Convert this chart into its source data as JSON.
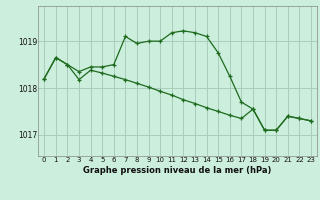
{
  "title": "Graphe pression niveau de la mer (hPa)",
  "background_color": "#cceedd",
  "grid_color": "#aaccbb",
  "line_color": "#1e6b1e",
  "xlim": [
    -0.5,
    23.5
  ],
  "ylim": [
    1016.55,
    1019.75
  ],
  "yticks": [
    1017,
    1018,
    1019
  ],
  "xticks": [
    0,
    1,
    2,
    3,
    4,
    5,
    6,
    7,
    8,
    9,
    10,
    11,
    12,
    13,
    14,
    15,
    16,
    17,
    18,
    19,
    20,
    21,
    22,
    23
  ],
  "series1": [
    [
      0,
      1018.2
    ],
    [
      1,
      1018.65
    ],
    [
      2,
      1018.5
    ],
    [
      3,
      1018.35
    ],
    [
      4,
      1018.45
    ],
    [
      5,
      1018.45
    ],
    [
      6,
      1018.5
    ],
    [
      7,
      1019.1
    ],
    [
      8,
      1018.95
    ],
    [
      9,
      1019.0
    ],
    [
      10,
      1019.0
    ],
    [
      11,
      1019.18
    ],
    [
      12,
      1019.22
    ],
    [
      13,
      1019.18
    ],
    [
      14,
      1019.1
    ],
    [
      15,
      1018.75
    ],
    [
      16,
      1018.25
    ],
    [
      17,
      1017.7
    ],
    [
      18,
      1017.55
    ],
    [
      19,
      1017.1
    ],
    [
      20,
      1017.1
    ],
    [
      21,
      1017.4
    ],
    [
      22,
      1017.35
    ],
    [
      23,
      1017.3
    ]
  ],
  "series2": [
    [
      0,
      1018.2
    ],
    [
      1,
      1018.65
    ],
    [
      2,
      1018.5
    ],
    [
      3,
      1018.18
    ],
    [
      4,
      1018.38
    ],
    [
      5,
      1018.32
    ],
    [
      6,
      1018.25
    ],
    [
      7,
      1018.18
    ],
    [
      8,
      1018.1
    ],
    [
      9,
      1018.02
    ],
    [
      10,
      1017.93
    ],
    [
      11,
      1017.85
    ],
    [
      12,
      1017.75
    ],
    [
      13,
      1017.67
    ],
    [
      14,
      1017.58
    ],
    [
      15,
      1017.5
    ],
    [
      16,
      1017.42
    ],
    [
      17,
      1017.35
    ],
    [
      18,
      1017.55
    ],
    [
      19,
      1017.1
    ],
    [
      20,
      1017.1
    ],
    [
      21,
      1017.4
    ],
    [
      22,
      1017.35
    ],
    [
      23,
      1017.3
    ]
  ]
}
